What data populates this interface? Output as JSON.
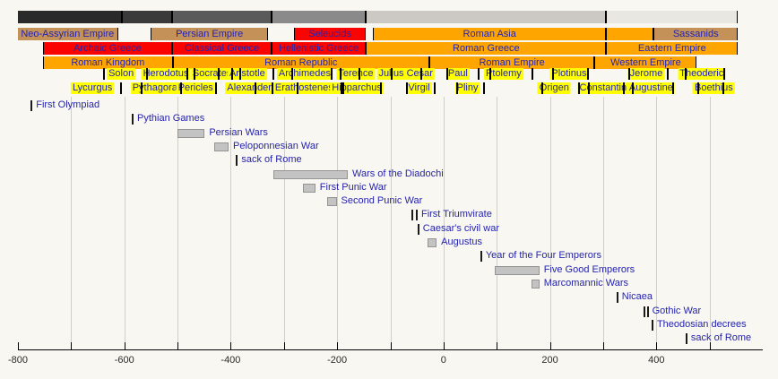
{
  "colors": {
    "tan": "#c49259",
    "orange": "#ffa500",
    "red": "#f90400",
    "yellow": "#ffff00",
    "text_blue": "#2523ad",
    "event_bar": "#c3c3c3",
    "grid": "#cfcfc7",
    "background": "#f8f7f1"
  },
  "chart_data": {
    "type": "timeline",
    "xlabel": "",
    "axis": {
      "min": -800,
      "max": 600,
      "data_end": 553,
      "tick_step": 100,
      "grid_step": 100,
      "grid_from": -700,
      "grid_to": 500,
      "tick_from": -800,
      "tick_to": 500,
      "labels": [
        {
          "value": -800,
          "text": "-800"
        },
        {
          "value": -600,
          "text": "-600"
        },
        {
          "value": -400,
          "text": "-400"
        },
        {
          "value": -200,
          "text": "-200"
        },
        {
          "value": 0,
          "text": "0"
        },
        {
          "value": 200,
          "text": "200"
        },
        {
          "value": 400,
          "text": "400"
        }
      ]
    },
    "period_rows": [
      {
        "name": "epochs",
        "y": 12,
        "segments": [
          {
            "label": "",
            "start": -800,
            "end": -605,
            "color": "#2a2a2a",
            "noleft": true
          },
          {
            "label": "",
            "start": -605,
            "end": -510,
            "color": "#3a3a3a"
          },
          {
            "label": "",
            "start": -510,
            "end": -323,
            "color": "#5a5a5a"
          },
          {
            "label": "",
            "start": -323,
            "end": -146,
            "color": "#8a8a8a"
          },
          {
            "label": "",
            "start": -146,
            "end": 305,
            "color": "#ccc9c4"
          },
          {
            "label": "",
            "start": 305,
            "end": 553,
            "color": "#e9e7e1"
          }
        ]
      },
      {
        "name": "asia",
        "y": 31,
        "segments": [
          {
            "label": "Neo-Assyrian Empire",
            "start": -800,
            "end": -612,
            "color": "tan",
            "noleft": true
          },
          {
            "label": "Persian Empire",
            "start": -550,
            "end": -330,
            "color": "tan"
          },
          {
            "label": "Seleucids",
            "start": -281,
            "end": -146,
            "color": "red"
          },
          {
            "label": "Roman Asia",
            "start": -133,
            "end": 306,
            "color": "orange"
          },
          {
            "label": "",
            "start": 306,
            "end": 395,
            "color": "orange"
          },
          {
            "label": "Sassanids",
            "start": 395,
            "end": 553,
            "color": "tan"
          }
        ]
      },
      {
        "name": "greece",
        "y": 47,
        "segments": [
          {
            "label": "Archaic Greece",
            "start": -753,
            "end": -510,
            "color": "red"
          },
          {
            "label": "Classical Greece",
            "start": -510,
            "end": -323,
            "color": "red"
          },
          {
            "label": "Hellenistic Greece",
            "start": -323,
            "end": -146,
            "color": "red"
          },
          {
            "label": "Roman Greece",
            "start": -146,
            "end": 306,
            "color": "orange"
          },
          {
            "label": "Eastern Empire",
            "start": 306,
            "end": 553,
            "color": "orange"
          }
        ]
      },
      {
        "name": "rome",
        "y": 63,
        "segments": [
          {
            "label": "Roman Kingdom",
            "start": -753,
            "end": -509,
            "color": "orange"
          },
          {
            "label": "Roman Republic",
            "start": -509,
            "end": -27,
            "color": "orange"
          },
          {
            "label": "Roman Empire",
            "start": -27,
            "end": 284,
            "color": "orange"
          },
          {
            "label": "Western Empire",
            "start": 284,
            "end": 476,
            "color": "orange"
          }
        ]
      }
    ],
    "people_rows": [
      {
        "y": 76,
        "people": [
          {
            "name": "Solon",
            "center": -606,
            "ticks": [
              -640,
              -559
            ]
          },
          {
            "name": "Herodotus",
            "center": -522,
            "ticks": [
              -484,
              -425
            ]
          },
          {
            "name": "Socrates",
            "center": -435,
            "ticks": [
              -470,
              -399
            ]
          },
          {
            "name": "Aristotle",
            "center": -369,
            "ticks": [
              -384,
              -322
            ]
          },
          {
            "name": "Archimedes",
            "center": -261,
            "ticks": [
              -287,
              -212
            ]
          },
          {
            "name": "Terence",
            "center": -165,
            "ticks": [
              -195,
              -159
            ]
          },
          {
            "name": "Julius Cesar",
            "center": -71,
            "ticks": [
              -100,
              -44
            ]
          },
          {
            "name": "Paul",
            "center": 27,
            "ticks": [
              5,
              64
            ]
          },
          {
            "name": "Ptolemy",
            "center": 113,
            "ticks": [
              87,
              165
            ]
          },
          {
            "name": "Plotinus",
            "center": 236,
            "ticks": [
              204,
              270
            ]
          },
          {
            "name": "Jerome",
            "center": 381,
            "ticks": [
              347,
              420
            ]
          },
          {
            "name": "Theoderic",
            "center": 485,
            "ticks": [
              454,
              526
            ]
          }
        ]
      },
      {
        "y": 92,
        "people": [
          {
            "name": "Lycurgus",
            "center": -660,
            "ticks": [
              -608
            ]
          },
          {
            "name": "Pythagoras",
            "center": -538,
            "ticks": [
              -570,
              -495
            ]
          },
          {
            "name": "Pericles",
            "center": -466,
            "ticks": [
              -495,
              -429
            ]
          },
          {
            "name": "Alexander",
            "center": -365,
            "ticks": [
              -356,
              -323
            ]
          },
          {
            "name": "Erathostenes",
            "center": -262,
            "ticks": [
              -276,
              -194
            ]
          },
          {
            "name": "Hipparchus",
            "center": -163,
            "ticks": [
              -190,
              -120
            ]
          },
          {
            "name": "Virgil",
            "center": -46,
            "ticks": [
              -70,
              -19
            ]
          },
          {
            "name": "Pliny",
            "center": 45,
            "ticks": [
              23,
              75
            ]
          },
          {
            "name": "Origen",
            "center": 208,
            "ticks": [
              184,
              253
            ]
          },
          {
            "name": "Constantine",
            "center": 305,
            "ticks": [
              272,
              337
            ]
          },
          {
            "name": "Augustine",
            "center": 390,
            "ticks": [
              354,
              430
            ]
          },
          {
            "name": "Boethius",
            "center": 508,
            "ticks": [
              477,
              524
            ]
          }
        ]
      }
    ],
    "events": [
      {
        "label": "First Olympiad",
        "type": "tick",
        "ticks": [
          -776
        ]
      },
      {
        "label": "Pythian Games",
        "type": "tick",
        "ticks": [
          -586
        ]
      },
      {
        "label": "Persian Wars",
        "type": "bar",
        "start": -500,
        "end": -449
      },
      {
        "label": "Peloponnesian War",
        "type": "bar",
        "start": -431,
        "end": -404
      },
      {
        "label": "sack of Rome",
        "type": "tick",
        "ticks": [
          -390
        ]
      },
      {
        "label": "Wars of the Diadochi",
        "type": "bar",
        "start": -320,
        "end": -180
      },
      {
        "label": "First Punic War",
        "type": "bar",
        "start": -264,
        "end": -241
      },
      {
        "label": "Second Punic War",
        "type": "bar",
        "start": -218,
        "end": -201
      },
      {
        "label": "First Triumvirate",
        "type": "ticks",
        "ticks": [
          -60,
          -52
        ]
      },
      {
        "label": "Caesar's civil war",
        "type": "tick",
        "ticks": [
          -49
        ]
      },
      {
        "label": "Augustus",
        "type": "bar",
        "start": -30,
        "end": -13
      },
      {
        "label": "Year of the Four Emperors",
        "type": "tick",
        "ticks": [
          69
        ]
      },
      {
        "label": "Five Good Emperors",
        "type": "bar",
        "start": 96,
        "end": 180
      },
      {
        "label": "Marcomannic Wars",
        "type": "bar",
        "start": 166,
        "end": 180
      },
      {
        "label": "Nicaea",
        "type": "tick",
        "ticks": [
          325
        ]
      },
      {
        "label": "Gothic War",
        "type": "ticks",
        "ticks": [
          376,
          382
        ]
      },
      {
        "label": "Theodosian decrees",
        "type": "tick",
        "ticks": [
          391
        ]
      },
      {
        "label": "sack of Rome",
        "type": "tick",
        "ticks": [
          455
        ]
      }
    ]
  }
}
